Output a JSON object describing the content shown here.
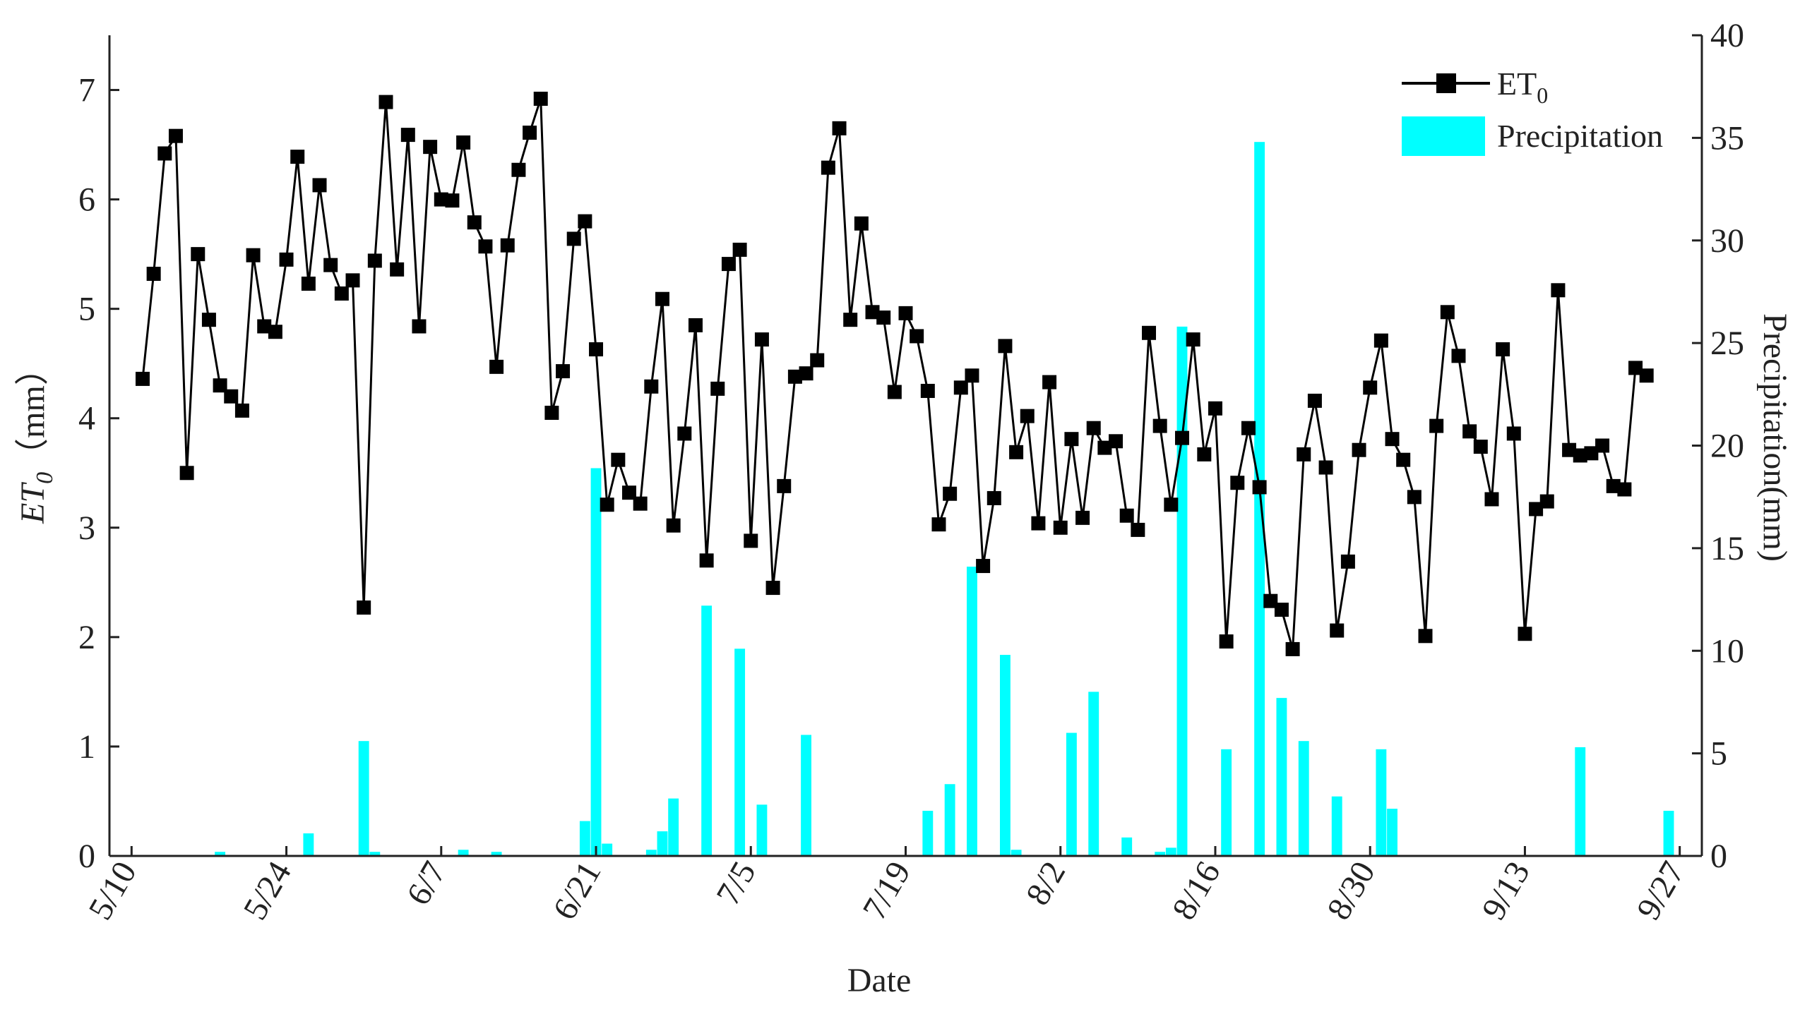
{
  "chart_data": {
    "type": "bar+line",
    "xlabel": "Date",
    "ylabel_left": "ET0（mm）",
    "ylabel_right": "Precipitation(mm)",
    "x_tick_labels": [
      "5/10",
      "5/24",
      "6/7",
      "6/21",
      "7/5",
      "7/19",
      "8/2",
      "8/16",
      "8/30",
      "9/13",
      "9/27"
    ],
    "ylim_left": [
      0,
      7.5
    ],
    "ylim_right": [
      0,
      40
    ],
    "y_ticks_left": [
      0,
      1,
      2,
      3,
      4,
      5,
      6,
      7
    ],
    "y_ticks_right": [
      0,
      5,
      10,
      15,
      20,
      25,
      30,
      35,
      40
    ],
    "legend_position": "top-right",
    "legend": {
      "et0": "ET",
      "et0_sub": "0",
      "precip": "Precipitation"
    },
    "colors": {
      "et0": "#000000",
      "precip": "#00FFFF"
    },
    "series": [
      {
        "name": "ET0",
        "axis": "left",
        "type": "line",
        "start_date": "5/11",
        "values": [
          4.36,
          5.32,
          6.42,
          6.58,
          3.5,
          5.5,
          4.9,
          4.3,
          4.2,
          4.07,
          5.49,
          4.84,
          4.79,
          5.45,
          6.39,
          5.23,
          6.13,
          5.4,
          5.14,
          5.26,
          2.27,
          5.44,
          6.89,
          5.36,
          6.59,
          4.84,
          6.48,
          6.0,
          5.99,
          6.52,
          5.79,
          5.57,
          4.47,
          5.58,
          6.27,
          6.61,
          6.92,
          4.05,
          4.43,
          5.64,
          5.8,
          4.63,
          3.21,
          3.62,
          3.32,
          3.22,
          4.29,
          5.09,
          3.02,
          3.86,
          4.85,
          2.7,
          4.27,
          5.41,
          5.54,
          2.88,
          4.72,
          2.45,
          3.38,
          4.38,
          4.41,
          4.53,
          6.29,
          6.65,
          4.9,
          5.78,
          4.97,
          4.92,
          4.24,
          4.96,
          4.75,
          4.25,
          3.03,
          3.31,
          4.28,
          4.39,
          2.65,
          3.27,
          4.66,
          3.69,
          4.02,
          3.04,
          4.33,
          3.0,
          3.81,
          3.09,
          3.91,
          3.73,
          3.79,
          3.11,
          2.98,
          4.78,
          3.93,
          3.21,
          3.82,
          4.72,
          3.67,
          4.09,
          1.96,
          3.41,
          3.91,
          3.37,
          2.33,
          2.25,
          1.89,
          3.67,
          4.16,
          3.55,
          2.06,
          2.69,
          3.71,
          4.28,
          4.71,
          3.81,
          3.62,
          3.28,
          2.01,
          3.93,
          4.97,
          4.57,
          3.88,
          3.74,
          3.26,
          4.63,
          3.86,
          2.03,
          3.17,
          3.24,
          5.17,
          3.71,
          3.66,
          3.68,
          3.75,
          3.38,
          3.35,
          4.46,
          4.39
        ]
      },
      {
        "name": "Precipitation",
        "axis": "right",
        "type": "bar",
        "points": [
          {
            "date": "5/18",
            "value": 0.2
          },
          {
            "date": "5/26",
            "value": 1.1
          },
          {
            "date": "5/31",
            "value": 5.6
          },
          {
            "date": "6/1",
            "value": 0.2
          },
          {
            "date": "6/9",
            "value": 0.3
          },
          {
            "date": "6/12",
            "value": 0.2
          },
          {
            "date": "6/20",
            "value": 1.7
          },
          {
            "date": "6/21",
            "value": 18.9
          },
          {
            "date": "6/22",
            "value": 0.6
          },
          {
            "date": "6/26",
            "value": 0.3
          },
          {
            "date": "6/27",
            "value": 1.2
          },
          {
            "date": "6/28",
            "value": 2.8
          },
          {
            "date": "7/1",
            "value": 12.2
          },
          {
            "date": "7/4",
            "value": 10.1
          },
          {
            "date": "7/6",
            "value": 2.5
          },
          {
            "date": "7/10",
            "value": 5.9
          },
          {
            "date": "7/21",
            "value": 2.2
          },
          {
            "date": "7/23",
            "value": 3.5
          },
          {
            "date": "7/25",
            "value": 14.1
          },
          {
            "date": "7/28",
            "value": 9.8
          },
          {
            "date": "7/29",
            "value": 0.3
          },
          {
            "date": "8/3",
            "value": 6.0
          },
          {
            "date": "8/5",
            "value": 8.0
          },
          {
            "date": "8/8",
            "value": 0.9
          },
          {
            "date": "8/11",
            "value": 0.2
          },
          {
            "date": "8/12",
            "value": 0.4
          },
          {
            "date": "8/13",
            "value": 25.8
          },
          {
            "date": "8/17",
            "value": 5.2
          },
          {
            "date": "8/20",
            "value": 34.8
          },
          {
            "date": "8/22",
            "value": 7.7
          },
          {
            "date": "8/24",
            "value": 5.6
          },
          {
            "date": "8/27",
            "value": 2.9
          },
          {
            "date": "8/31",
            "value": 5.2
          },
          {
            "date": "9/1",
            "value": 2.3
          },
          {
            "date": "9/18",
            "value": 5.3
          },
          {
            "date": "9/26",
            "value": 2.2
          }
        ]
      }
    ]
  }
}
